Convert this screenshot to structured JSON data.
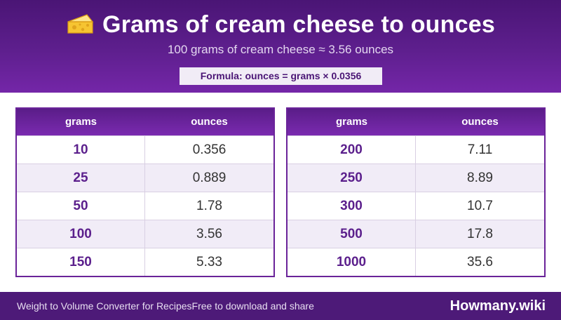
{
  "header": {
    "icon": "cheese-icon",
    "title": "Grams of cream cheese to ounces",
    "subtitle": "100 grams of cream cheese ≈ 3.56 ounces",
    "formula": "Formula: ounces = grams × 0.0356"
  },
  "colors": {
    "header_purple": "#5e1f8e",
    "accent_purple": "#6a2399",
    "row_alt": "#f1ecf7",
    "footer_bg": "#4d1a78",
    "cheese_yellow": "#f6c431"
  },
  "tables": [
    {
      "headers": [
        "grams",
        "ounces"
      ],
      "rows": [
        {
          "grams": "10",
          "ounces": "0.356"
        },
        {
          "grams": "25",
          "ounces": "0.889"
        },
        {
          "grams": "50",
          "ounces": "1.78"
        },
        {
          "grams": "100",
          "ounces": "3.56"
        },
        {
          "grams": "150",
          "ounces": "5.33"
        }
      ]
    },
    {
      "headers": [
        "grams",
        "ounces"
      ],
      "rows": [
        {
          "grams": "200",
          "ounces": "7.11"
        },
        {
          "grams": "250",
          "ounces": "8.89"
        },
        {
          "grams": "300",
          "ounces": "10.7"
        },
        {
          "grams": "500",
          "ounces": "17.8"
        },
        {
          "grams": "1000",
          "ounces": "35.6"
        }
      ]
    }
  ],
  "footer": {
    "left": "Weight to Volume Converter for Recipes",
    "middle": "Free to download and share",
    "brand": "Howmany.wiki"
  }
}
